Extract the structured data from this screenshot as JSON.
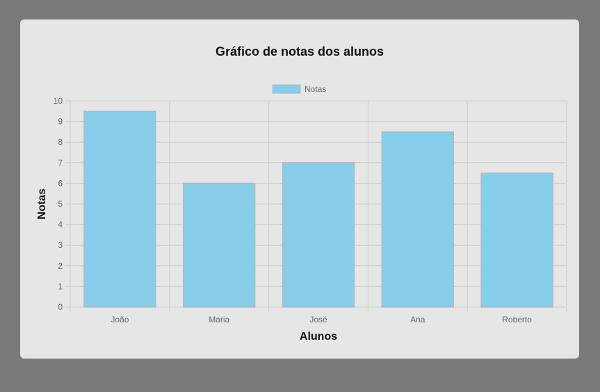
{
  "chart_data": {
    "type": "bar",
    "title": "Gráfico de notas dos alunos",
    "xlabel": "Alunos",
    "ylabel": "Notas",
    "categories": [
      "João",
      "Maria",
      "José",
      "Ana",
      "Roberto"
    ],
    "series": [
      {
        "name": "Notas",
        "values": [
          9.5,
          6,
          7,
          8.5,
          6.5
        ]
      }
    ],
    "ylim": [
      0,
      10
    ],
    "yticks": [
      "0",
      "1",
      "2",
      "3",
      "4",
      "5",
      "6",
      "7",
      "8",
      "9",
      "10"
    ],
    "grid": true,
    "legend_position": "top",
    "colors": {
      "bar_fill": "#87ceeb",
      "bar_border": "#b0b8bd",
      "grid": "#cccccc",
      "card_background": "#e6e6e6",
      "page_background": "#7a7a7a"
    }
  }
}
